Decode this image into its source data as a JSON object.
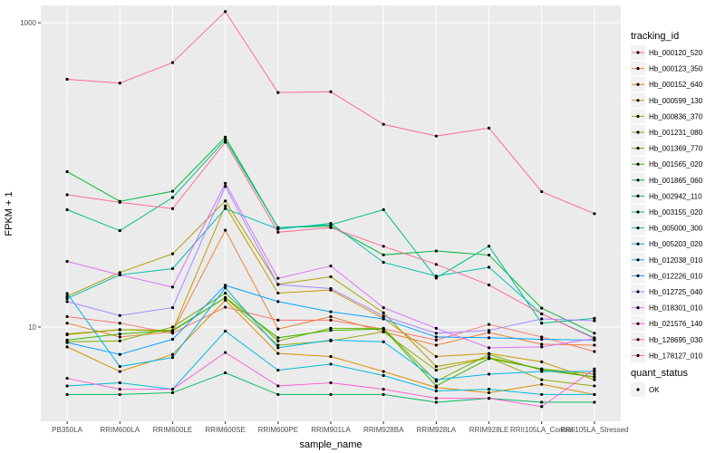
{
  "chart_data": {
    "type": "line",
    "title": "",
    "xlabel": "sample_name",
    "ylabel": "FPKM + 1",
    "y_scale": "log10",
    "ylim": [
      2.4,
      1300
    ],
    "y_ticks": [
      10,
      1000
    ],
    "y_tick_labels": [
      "10",
      "1000"
    ],
    "grid": true,
    "legend_position": "right",
    "categories": [
      "PB350LA",
      "RRIM600LA",
      "RRIM600LE",
      "RRIM600SE",
      "RRIM600PE",
      "RRIM901LA",
      "RRIM928BA",
      "RRIM928LA",
      "RRIM928LE",
      "RRII105LA_Control",
      "RRII105LA_Stressed"
    ],
    "legend_title": "tracking_id",
    "series": [
      {
        "name": "Hb_000120_520",
        "color": "#F8766D",
        "values": [
          11.7,
          10.6,
          9.1,
          13.5,
          11.1,
          11.1,
          9.7,
          8.2,
          10.4,
          8.6,
          6.9
        ]
      },
      {
        "name": "Hb_000123_350",
        "color": "#EC8239",
        "values": [
          10.6,
          8.6,
          9.3,
          43.3,
          9.7,
          11.7,
          9.3,
          7.6,
          9.2,
          7.7,
          7.6
        ]
      },
      {
        "name": "Hb_000152_640",
        "color": "#DB8E00",
        "values": [
          7.4,
          5.1,
          6.6,
          15.0,
          6.7,
          6.4,
          5.1,
          4.0,
          3.7,
          4.2,
          3.6
        ]
      },
      {
        "name": "Hb_000599_130",
        "color": "#C79800",
        "values": [
          8.9,
          9.6,
          9.5,
          62.5,
          16.7,
          17.5,
          11.4,
          6.4,
          6.7,
          5.9,
          4.5
        ]
      },
      {
        "name": "Hb_000836_370",
        "color": "#AFA100",
        "values": [
          15.9,
          22.8,
          30.3,
          67.4,
          19.1,
          21.4,
          12.4,
          5.5,
          6.3,
          5.3,
          4.9
        ]
      },
      {
        "name": "Hb_001231_080",
        "color": "#94AA00",
        "values": [
          9.0,
          9.6,
          9.4,
          15.6,
          7.6,
          8.1,
          9.3,
          5.2,
          6.3,
          4.5,
          4.1
        ]
      },
      {
        "name": "Hb_001369_770",
        "color": "#72B000",
        "values": [
          8.0,
          8.1,
          10.0,
          16.7,
          8.1,
          9.8,
          9.8,
          4.4,
          6.6,
          5.2,
          4.7
        ]
      },
      {
        "name": "Hb_001565_020",
        "color": "#3DB700",
        "values": [
          8.2,
          9.0,
          9.5,
          15.6,
          8.5,
          9.5,
          9.7,
          4.1,
          6.2,
          5.3,
          4.7
        ]
      },
      {
        "name": "Hb_001865_060",
        "color": "#00BA38",
        "values": [
          105,
          67,
          78,
          177,
          45,
          46,
          29.8,
          31.6,
          29.7,
          13.3,
          9.1
        ]
      },
      {
        "name": "Hb_002942_110",
        "color": "#00BD5F",
        "values": [
          3.6,
          3.6,
          3.7,
          5.0,
          3.6,
          3.6,
          3.6,
          3.2,
          3.4,
          3.2,
          3.2
        ]
      },
      {
        "name": "Hb_003155_020",
        "color": "#00C08B",
        "values": [
          59,
          43,
          71,
          170,
          45,
          47,
          59,
          21,
          34,
          10.6,
          11.4
        ]
      },
      {
        "name": "Hb_005000_300",
        "color": "#00C0AF",
        "values": [
          15.4,
          22.0,
          24.2,
          60,
          44,
          48,
          26.6,
          21.6,
          24.7,
          12.2,
          8.5
        ]
      },
      {
        "name": "Hb_005203_020",
        "color": "#00BCD8",
        "values": [
          4.1,
          4.3,
          3.9,
          9.4,
          5.2,
          5.7,
          4.8,
          3.8,
          3.9,
          3.6,
          3.6
        ]
      },
      {
        "name": "Hb_012038_010",
        "color": "#00B6EB",
        "values": [
          16.6,
          5.5,
          6.3,
          18.1,
          7.3,
          8.2,
          8.0,
          4.5,
          4.9,
          5.1,
          5.1
        ]
      },
      {
        "name": "Hb_012226_010",
        "color": "#06A4FF",
        "values": [
          7.9,
          6.6,
          8.3,
          18.8,
          14.7,
          12.6,
          11.3,
          8.6,
          8.5,
          8.3,
          8.2
        ]
      },
      {
        "name": "Hb_012725_040",
        "color": "#A58AFF",
        "values": [
          14.7,
          11.9,
          13.4,
          84,
          19.0,
          17.9,
          11.8,
          9.1,
          9.5,
          11.3,
          11.0
        ]
      },
      {
        "name": "Hb_018301_010",
        "color": "#DF70F8",
        "values": [
          27,
          22.0,
          18.3,
          88,
          20.9,
          25.2,
          13.4,
          9.8,
          7.3,
          7.4,
          8.4
        ]
      },
      {
        "name": "Hb_021576_140",
        "color": "#FB61D7",
        "values": [
          4.6,
          3.9,
          3.9,
          6.8,
          4.1,
          4.3,
          3.9,
          3.4,
          3.4,
          3.0,
          5.3
        ]
      },
      {
        "name": "Hb_128695_030",
        "color": "#FF66A8",
        "values": [
          425,
          401,
          547,
          1185,
          348,
          352,
          215,
          180,
          203,
          77.6,
          55.6
        ]
      },
      {
        "name": "Hb_178127_010",
        "color": "#FF6C91",
        "values": [
          74,
          66,
          60,
          164,
          42,
          45,
          33.9,
          25.8,
          18.9,
          12.2,
          8.4
        ]
      }
    ],
    "quant_status": {
      "title": "quant_status",
      "entries": [
        "OK"
      ]
    }
  },
  "colors": {
    "panel_background": "#EBEBEB",
    "grid_major": "#FFFFFF",
    "point": "#000000"
  }
}
